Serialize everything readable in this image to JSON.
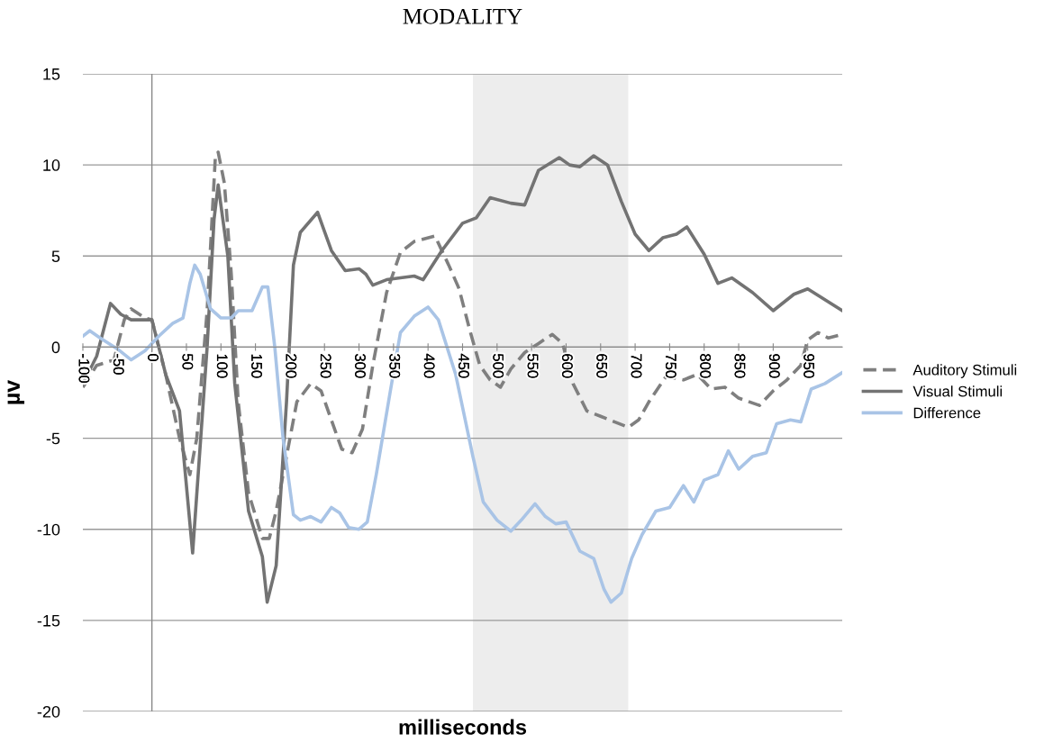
{
  "chart_data": {
    "type": "line",
    "title": "MODALITY",
    "xlabel": "milliseconds",
    "ylabel": "µv",
    "xlim": [
      -100,
      1000
    ],
    "ylim": [
      -20,
      15
    ],
    "xticks": [
      -100,
      -50,
      0,
      50,
      100,
      150,
      200,
      250,
      300,
      350,
      400,
      450,
      500,
      550,
      600,
      650,
      700,
      750,
      800,
      850,
      900,
      950
    ],
    "yticks": [
      -20,
      -15,
      -10,
      -5,
      0,
      5,
      10,
      15
    ],
    "grid": "y",
    "legend": "right",
    "bands": [
      {
        "axis": "x",
        "from": 465,
        "to": 690,
        "color": "#ededed"
      }
    ],
    "ref_lines": [
      {
        "axis": "x",
        "value": 0,
        "color": "#888888"
      }
    ],
    "series": [
      {
        "name": "Auditory Stimuli",
        "color": "#7f7f7f",
        "line_style": "dashed",
        "x": [
          -100,
          -80,
          -55,
          -40,
          -30,
          -10,
          0,
          20,
          40,
          55,
          65,
          80,
          92,
          96,
          105,
          115,
          125,
          140,
          160,
          170,
          180,
          195,
          210,
          230,
          245,
          260,
          275,
          290,
          305,
          320,
          340,
          360,
          380,
          410,
          430,
          445,
          460,
          475,
          490,
          505,
          520,
          540,
          560,
          580,
          595,
          610,
          630,
          650,
          670,
          690,
          705,
          720,
          745,
          770,
          790,
          810,
          830,
          850,
          880,
          900,
          920,
          940,
          950,
          965,
          980,
          1000
        ],
        "values": [
          -2.2,
          -1.0,
          -0.7,
          1.5,
          2.1,
          1.6,
          1.5,
          -1.5,
          -5,
          -7,
          -5,
          2,
          10.5,
          10.7,
          9,
          4,
          -3,
          -8,
          -10.5,
          -10.5,
          -9,
          -6,
          -3,
          -2.0,
          -2.4,
          -4,
          -5.6,
          -5.8,
          -4.5,
          -1,
          3,
          5.2,
          5.8,
          6.1,
          4.5,
          3.2,
          1,
          -1,
          -1.8,
          -2.2,
          -1.2,
          -0.3,
          0.2,
          0.7,
          0.2,
          -2,
          -3.5,
          -3.8,
          -4.1,
          -4.4,
          -4.0,
          -3,
          -1.6,
          -1.8,
          -1.5,
          -2.3,
          -2.2,
          -2.8,
          -3.2,
          -2.4,
          -1.8,
          -1.0,
          0.4,
          0.8,
          0.5,
          0.7
        ]
      },
      {
        "name": "Visual Stimuli",
        "color": "#737373",
        "line_style": "solid",
        "x": [
          -100,
          -80,
          -60,
          -45,
          -30,
          0,
          20,
          40,
          59,
          80,
          90,
          96,
          110,
          120,
          140,
          160,
          167,
          180,
          195,
          205,
          215,
          240,
          260,
          280,
          300,
          310,
          320,
          340,
          380,
          393,
          420,
          450,
          470,
          490,
          520,
          540,
          560,
          590,
          605,
          620,
          640,
          660,
          680,
          700,
          720,
          740,
          760,
          775,
          800,
          820,
          840,
          870,
          900,
          930,
          950,
          1000
        ],
        "values": [
          -2.0,
          -0.5,
          2.4,
          1.8,
          1.5,
          1.5,
          -1.5,
          -3.5,
          -11.3,
          0,
          7,
          8.9,
          5,
          -2,
          -9,
          -11.5,
          -14,
          -12,
          -3,
          4.5,
          6.3,
          7.4,
          5.3,
          4.2,
          4.3,
          4.0,
          3.4,
          3.7,
          3.9,
          3.7,
          5.3,
          6.8,
          7.1,
          8.2,
          7.9,
          7.8,
          9.7,
          10.4,
          10.0,
          9.9,
          10.5,
          10.0,
          8.0,
          6.2,
          5.3,
          6.0,
          6.2,
          6.6,
          5.1,
          3.5,
          3.8,
          3.0,
          2.0,
          2.9,
          3.2,
          2.0
        ]
      },
      {
        "name": "Difference",
        "color": "#a9c4e6",
        "line_style": "solid",
        "x": [
          -100,
          -90,
          -75,
          -50,
          -30,
          -10,
          10,
          30,
          45,
          55,
          62,
          70,
          85,
          100,
          115,
          125,
          145,
          160,
          168,
          178,
          190,
          205,
          215,
          230,
          245,
          260,
          272,
          285,
          300,
          312,
          325,
          345,
          360,
          380,
          400,
          415,
          440,
          465,
          480,
          500,
          520,
          535,
          555,
          570,
          585,
          600,
          620,
          640,
          655,
          665,
          680,
          695,
          710,
          730,
          750,
          770,
          785,
          800,
          820,
          835,
          850,
          870,
          890,
          905,
          925,
          940,
          955,
          975,
          1000
        ],
        "values": [
          0.6,
          0.9,
          0.5,
          -0.1,
          -0.7,
          -0.2,
          0.6,
          1.3,
          1.6,
          3.5,
          4.5,
          4.0,
          2.1,
          1.6,
          1.6,
          2.0,
          2.0,
          3.3,
          3.3,
          0,
          -5,
          -9.2,
          -9.5,
          -9.3,
          -9.6,
          -8.8,
          -9.1,
          -9.9,
          -10.0,
          -9.6,
          -7,
          -2.5,
          0.8,
          1.7,
          2.2,
          1.5,
          -1.5,
          -6,
          -8.5,
          -9.5,
          -10.1,
          -9.5,
          -8.6,
          -9.3,
          -9.7,
          -9.6,
          -11.2,
          -11.6,
          -13.3,
          -14.0,
          -13.5,
          -11.6,
          -10.3,
          -9,
          -8.8,
          -7.6,
          -8.5,
          -7.3,
          -7.0,
          -5.7,
          -6.7,
          -6.0,
          -5.8,
          -4.2,
          -4.0,
          -4.1,
          -2.3,
          -2.0,
          -1.4
        ]
      }
    ]
  }
}
